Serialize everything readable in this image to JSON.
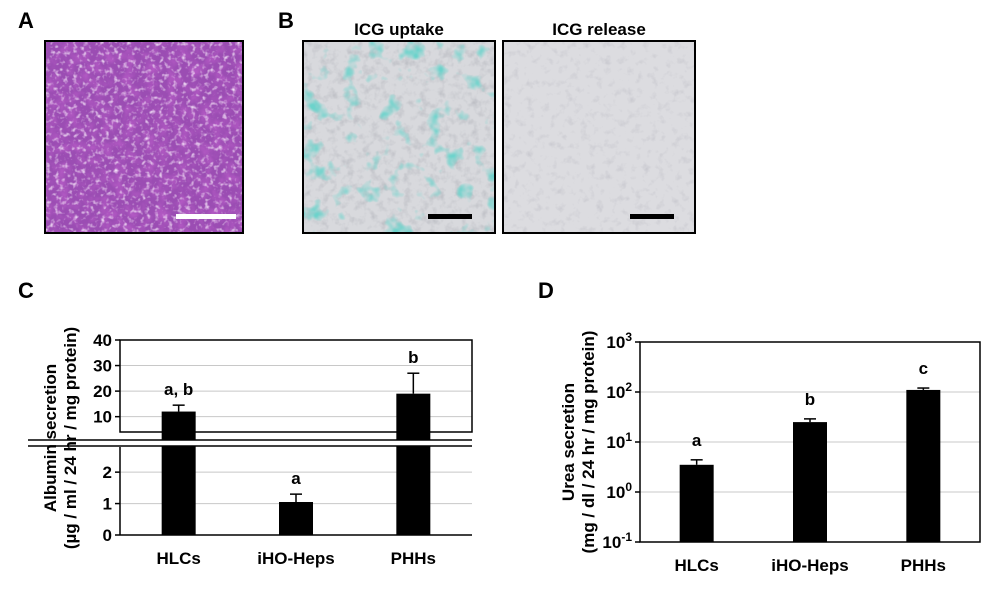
{
  "panels": {
    "a": {
      "letter": "A"
    },
    "b": {
      "letter": "B",
      "left_title": "ICG uptake",
      "right_title": "ICG release"
    },
    "c": {
      "letter": "C"
    },
    "d": {
      "letter": "D"
    }
  },
  "colors": {
    "stain_purple": "#8a3aa3",
    "icg_teal": "#2aa89a",
    "bright_field": "#d9d9db",
    "bar": "#000000",
    "grid": "#c8c8c8"
  },
  "chart_data": [
    {
      "type": "bar",
      "panel": "C",
      "title": "",
      "categories": [
        "HLCs",
        "iHO-Heps",
        "PHHs"
      ],
      "values": [
        12,
        1.05,
        19
      ],
      "errors": [
        2.5,
        0.25,
        8
      ],
      "annotations": [
        "a, b",
        "a",
        "b"
      ],
      "ylabel_line1": "Albumin secretion",
      "ylabel_line2": "(µg / ml / 24 hr / mg protein)",
      "axis_break": true,
      "upper_ylim": [
        4,
        40
      ],
      "upper_ticks": [
        "40",
        "30",
        "20",
        "10"
      ],
      "lower_ylim": [
        0,
        2.8
      ],
      "lower_ticks": [
        "2",
        "1",
        "0"
      ],
      "grid": true
    },
    {
      "type": "bar",
      "panel": "D",
      "title": "",
      "categories": [
        "HLCs",
        "iHO-Heps",
        "PHHs"
      ],
      "values": [
        3.5,
        25,
        110
      ],
      "errors": [
        0.9,
        4,
        10
      ],
      "annotations": [
        "a",
        "b",
        "c"
      ],
      "ylabel_line1": "Urea secretion",
      "ylabel_line2": "(mg / dl / 24 hr / mg protein)",
      "yscale": "log",
      "ylim": [
        0.1,
        1000
      ],
      "y_ticks": [
        {
          "base": "10",
          "exp": "3"
        },
        {
          "base": "10",
          "exp": "2"
        },
        {
          "base": "10",
          "exp": "1"
        },
        {
          "base": "10",
          "exp": "0"
        },
        {
          "base": "10",
          "exp": "-1"
        }
      ],
      "grid": true
    }
  ]
}
